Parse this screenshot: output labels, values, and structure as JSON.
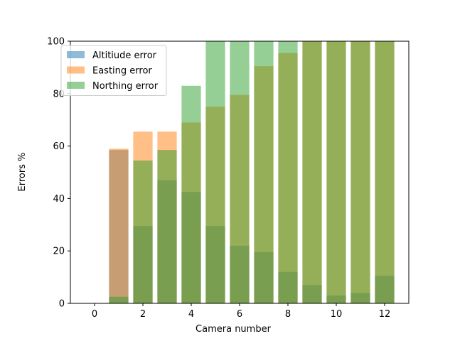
{
  "chart_data": {
    "type": "bar",
    "xlabel": "Camera number",
    "ylabel": "Errors %",
    "xlim": [
      -1,
      13
    ],
    "ylim": [
      0,
      100
    ],
    "xticks": [
      0,
      2,
      4,
      6,
      8,
      10,
      12
    ],
    "yticks": [
      0,
      20,
      40,
      60,
      80,
      100
    ],
    "grid": false,
    "legend_position": "top-left",
    "x": [
      1,
      2,
      3,
      4,
      5,
      6,
      7,
      8,
      9,
      10,
      11,
      12
    ],
    "series": [
      {
        "name": "Altitiude error",
        "color": "#1f77b4",
        "values": [
          58.5,
          29.5,
          47,
          42.5,
          29.5,
          22,
          19.5,
          12,
          7,
          3,
          4,
          10.5
        ]
      },
      {
        "name": "Easting error",
        "color": "#ff7f0e",
        "values": [
          59,
          65.5,
          65.5,
          69,
          75,
          79.5,
          90.5,
          95.5,
          100,
          100,
          100,
          100
        ]
      },
      {
        "name": "Northing error",
        "color": "#2ca02c",
        "values": [
          2.5,
          54.5,
          58.5,
          83,
          100,
          100,
          100,
          100,
          100,
          100,
          100,
          100
        ]
      }
    ]
  }
}
